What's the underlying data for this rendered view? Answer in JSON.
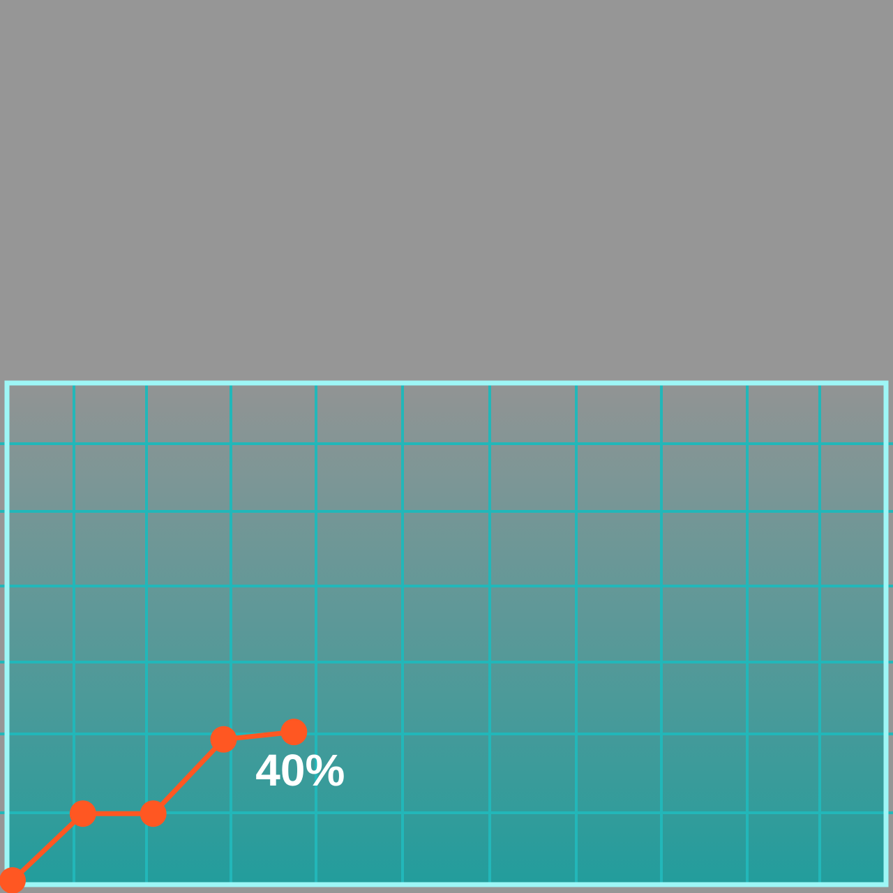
{
  "colors": {
    "page_background": "#969696",
    "plot_gradient_top": "#929494",
    "plot_gradient_bottom": "#229d9c",
    "frame": "#9ef6f6",
    "grid": "#22b7b9",
    "line": "#ff5722",
    "label": "#ffffff"
  },
  "chart_data": {
    "type": "line",
    "grid": true,
    "x": [
      0,
      1,
      2,
      3,
      4
    ],
    "y": [
      0,
      9,
      9,
      19,
      20
    ],
    "xlim": [
      0,
      12
    ],
    "ylim": [
      0,
      67
    ],
    "annotation": {
      "text": "40%"
    }
  }
}
